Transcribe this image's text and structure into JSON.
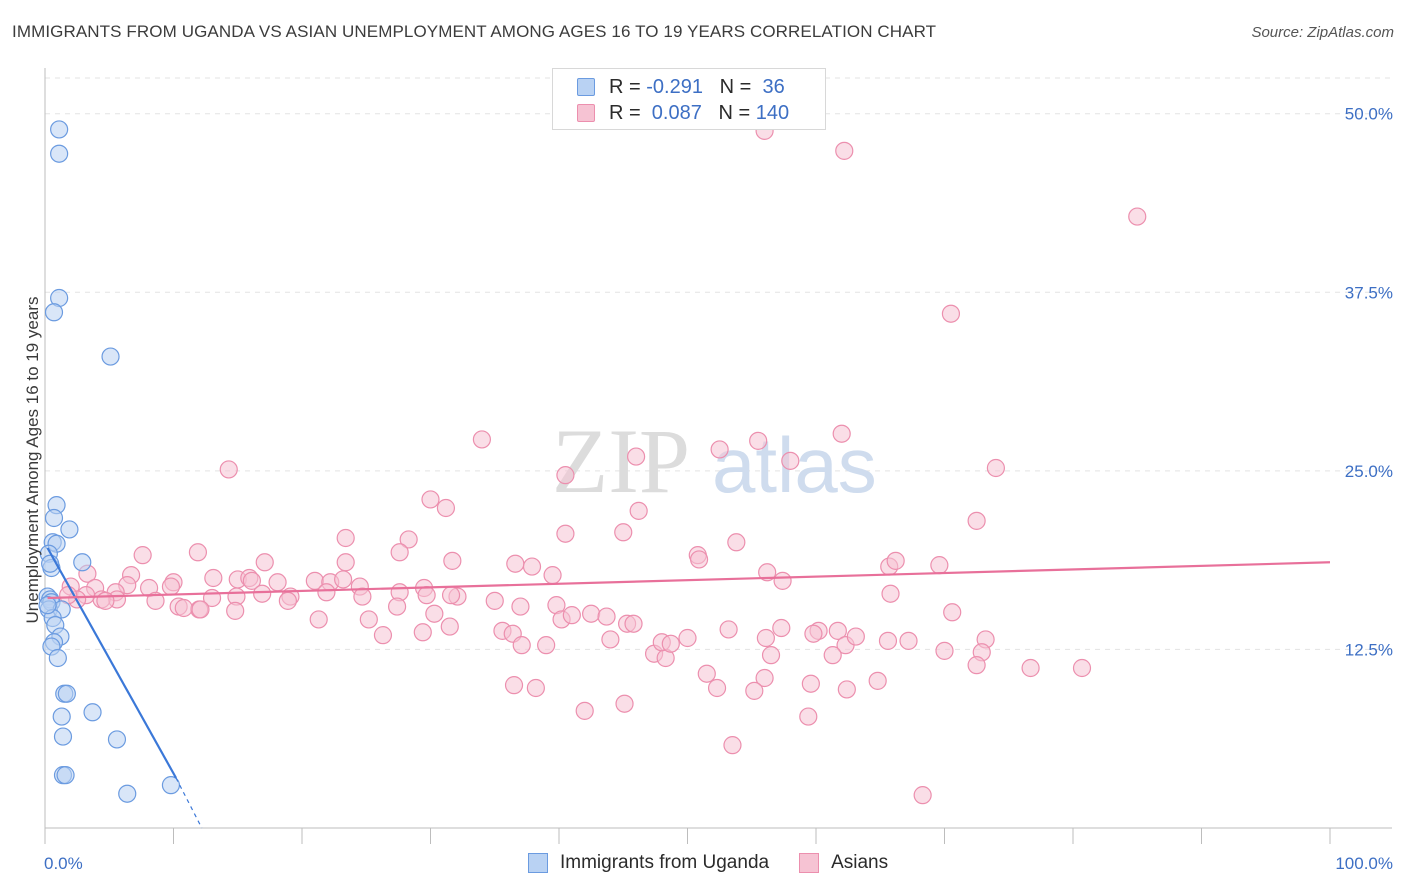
{
  "title": "IMMIGRANTS FROM UGANDA VS ASIAN UNEMPLOYMENT AMONG AGES 16 TO 19 YEARS CORRELATION CHART",
  "source": "Source: ZipAtlas.com",
  "watermark": {
    "zip": "ZIP",
    "atlas": "atlas"
  },
  "colors": {
    "uganda_fill": "#b9d2f3",
    "uganda_stroke": "#6b9be0",
    "uganda_line": "#3b78d8",
    "asian_fill": "#f6c3d3",
    "asian_stroke": "#ec8fae",
    "asian_line": "#e8709a",
    "tick_text": "#3d6fc4",
    "grid": "#e3e3e3"
  },
  "legend": {
    "rows": [
      {
        "r_label": "R =",
        "r_value": "-0.291",
        "n_label": "N =",
        "n_value": " 36",
        "series": "uganda"
      },
      {
        "r_label": "R =",
        "r_value": " 0.087",
        "n_label": "N =",
        "n_value": "140",
        "series": "asian"
      }
    ]
  },
  "bottom_legend": [
    {
      "label": "Immigrants from Uganda",
      "series": "uganda"
    },
    {
      "label": "Asians",
      "series": "asian"
    }
  ],
  "chart_data": {
    "type": "scatter",
    "ylabel": "Unemployment Among Ages 16 to 19 years",
    "xlabel": "",
    "xlim": [
      0,
      100
    ],
    "ylim": [
      0,
      52.5
    ],
    "x_tick_labels": [
      {
        "x": 0,
        "label": "0.0%"
      },
      {
        "x": 100,
        "label": "100.0%"
      }
    ],
    "y_ticks": [
      {
        "y": 12.5,
        "label": "12.5%"
      },
      {
        "y": 25,
        "label": "25.0%"
      },
      {
        "y": 37.5,
        "label": "37.5%"
      },
      {
        "y": 50,
        "label": "50.0%"
      }
    ],
    "grid": true,
    "series": [
      {
        "name": "Immigrants from Uganda",
        "key": "uganda",
        "points": [
          [
            1.1,
            48.9
          ],
          [
            1.1,
            47.2
          ],
          [
            1.1,
            37.1
          ],
          [
            0.7,
            36.1
          ],
          [
            5.1,
            33.0
          ],
          [
            0.9,
            22.6
          ],
          [
            0.7,
            21.7
          ],
          [
            1.9,
            20.9
          ],
          [
            0.6,
            20.0
          ],
          [
            0.9,
            19.9
          ],
          [
            0.3,
            19.2
          ],
          [
            2.9,
            18.6
          ],
          [
            0.5,
            18.2
          ],
          [
            0.2,
            16.2
          ],
          [
            0.4,
            16.0
          ],
          [
            0.5,
            15.8
          ],
          [
            0.3,
            15.3
          ],
          [
            1.3,
            15.3
          ],
          [
            0.6,
            14.7
          ],
          [
            0.8,
            14.2
          ],
          [
            1.2,
            13.4
          ],
          [
            0.7,
            13.0
          ],
          [
            0.5,
            12.7
          ],
          [
            1.0,
            11.9
          ],
          [
            1.5,
            9.4
          ],
          [
            1.7,
            9.4
          ],
          [
            3.7,
            8.1
          ],
          [
            1.3,
            7.8
          ],
          [
            1.4,
            6.4
          ],
          [
            5.6,
            6.2
          ],
          [
            1.4,
            3.7
          ],
          [
            1.6,
            3.7
          ],
          [
            6.4,
            2.4
          ],
          [
            9.8,
            3.0
          ],
          [
            0.4,
            18.5
          ],
          [
            0.2,
            15.6
          ]
        ],
        "trend": {
          "x1": 0.2,
          "y1": 19.6,
          "x2": 10.2,
          "y2": 3.5,
          "dash_x2": 12.2,
          "dash_y2": 0
        }
      },
      {
        "name": "Asians",
        "key": "asian",
        "points": [
          [
            56.0,
            48.8
          ],
          [
            62.2,
            47.4
          ],
          [
            85.0,
            42.8
          ],
          [
            70.5,
            36.0
          ],
          [
            62.0,
            27.6
          ],
          [
            34.0,
            27.2
          ],
          [
            55.5,
            27.1
          ],
          [
            46.0,
            26.0
          ],
          [
            52.5,
            26.5
          ],
          [
            58.0,
            25.7
          ],
          [
            14.3,
            25.1
          ],
          [
            40.5,
            24.7
          ],
          [
            74.0,
            25.2
          ],
          [
            30.0,
            23.0
          ],
          [
            31.2,
            22.4
          ],
          [
            46.2,
            22.2
          ],
          [
            72.5,
            21.5
          ],
          [
            23.4,
            20.3
          ],
          [
            28.3,
            20.2
          ],
          [
            40.5,
            20.6
          ],
          [
            45.0,
            20.7
          ],
          [
            53.8,
            20.0
          ],
          [
            27.6,
            19.3
          ],
          [
            11.9,
            19.3
          ],
          [
            7.6,
            19.1
          ],
          [
            50.8,
            19.1
          ],
          [
            50.9,
            18.8
          ],
          [
            3.3,
            17.8
          ],
          [
            23.4,
            18.6
          ],
          [
            17.1,
            18.6
          ],
          [
            31.7,
            18.7
          ],
          [
            36.6,
            18.5
          ],
          [
            37.9,
            18.3
          ],
          [
            56.2,
            17.9
          ],
          [
            65.7,
            18.3
          ],
          [
            66.2,
            18.7
          ],
          [
            69.6,
            18.4
          ],
          [
            57.4,
            17.3
          ],
          [
            10.0,
            17.2
          ],
          [
            39.5,
            17.7
          ],
          [
            29.5,
            16.8
          ],
          [
            6.7,
            17.7
          ],
          [
            15.0,
            17.4
          ],
          [
            15.9,
            17.5
          ],
          [
            16.1,
            17.3
          ],
          [
            13.1,
            17.5
          ],
          [
            18.1,
            17.2
          ],
          [
            21.0,
            17.3
          ],
          [
            8.1,
            16.8
          ],
          [
            9.8,
            16.9
          ],
          [
            22.2,
            17.2
          ],
          [
            23.2,
            17.4
          ],
          [
            24.5,
            16.9
          ],
          [
            6.4,
            17.0
          ],
          [
            5.5,
            16.5
          ],
          [
            2.0,
            16.9
          ],
          [
            3.9,
            16.8
          ],
          [
            13.0,
            16.1
          ],
          [
            14.9,
            16.2
          ],
          [
            16.9,
            16.4
          ],
          [
            21.9,
            16.5
          ],
          [
            19.1,
            16.2
          ],
          [
            24.7,
            16.2
          ],
          [
            18.9,
            15.9
          ],
          [
            27.6,
            16.5
          ],
          [
            29.7,
            16.3
          ],
          [
            32.1,
            16.2
          ],
          [
            31.6,
            16.3
          ],
          [
            35.0,
            15.9
          ],
          [
            27.4,
            15.5
          ],
          [
            37.0,
            15.5
          ],
          [
            39.8,
            15.6
          ],
          [
            5.6,
            16.0
          ],
          [
            4.4,
            16.0
          ],
          [
            4.7,
            15.9
          ],
          [
            3.2,
            16.3
          ],
          [
            2.5,
            16.0
          ],
          [
            1.8,
            16.3
          ],
          [
            8.6,
            15.9
          ],
          [
            12.0,
            15.3
          ],
          [
            10.4,
            15.5
          ],
          [
            10.8,
            15.4
          ],
          [
            12.1,
            15.3
          ],
          [
            14.8,
            15.2
          ],
          [
            30.3,
            15.0
          ],
          [
            42.5,
            15.0
          ],
          [
            43.7,
            14.8
          ],
          [
            40.2,
            14.6
          ],
          [
            41.0,
            14.9
          ],
          [
            65.8,
            16.4
          ],
          [
            70.6,
            15.1
          ],
          [
            21.3,
            14.6
          ],
          [
            25.2,
            14.6
          ],
          [
            26.3,
            13.5
          ],
          [
            35.6,
            13.8
          ],
          [
            31.5,
            14.1
          ],
          [
            29.4,
            13.7
          ],
          [
            36.4,
            13.6
          ],
          [
            45.3,
            14.3
          ],
          [
            50.0,
            13.3
          ],
          [
            45.8,
            14.3
          ],
          [
            53.2,
            13.9
          ],
          [
            56.1,
            13.3
          ],
          [
            57.3,
            14.0
          ],
          [
            60.2,
            13.8
          ],
          [
            59.8,
            13.6
          ],
          [
            61.7,
            13.8
          ],
          [
            65.6,
            13.1
          ],
          [
            62.3,
            12.8
          ],
          [
            61.3,
            12.1
          ],
          [
            63.1,
            13.4
          ],
          [
            47.4,
            12.2
          ],
          [
            48.3,
            11.9
          ],
          [
            37.1,
            12.8
          ],
          [
            39.0,
            12.8
          ],
          [
            44.0,
            13.2
          ],
          [
            48.0,
            13.0
          ],
          [
            48.7,
            12.9
          ],
          [
            56.5,
            12.1
          ],
          [
            67.2,
            13.1
          ],
          [
            73.2,
            13.2
          ],
          [
            70.0,
            12.4
          ],
          [
            72.9,
            12.3
          ],
          [
            72.5,
            11.4
          ],
          [
            76.7,
            11.2
          ],
          [
            56.0,
            10.5
          ],
          [
            51.5,
            10.8
          ],
          [
            64.8,
            10.3
          ],
          [
            59.6,
            10.1
          ],
          [
            62.4,
            9.7
          ],
          [
            36.5,
            10.0
          ],
          [
            38.2,
            9.8
          ],
          [
            52.3,
            9.8
          ],
          [
            55.2,
            9.6
          ],
          [
            45.1,
            8.7
          ],
          [
            42.0,
            8.2
          ],
          [
            59.4,
            7.8
          ],
          [
            53.5,
            5.8
          ],
          [
            68.3,
            2.3
          ],
          [
            80.7,
            11.2
          ]
        ],
        "trend": {
          "x1": 0.2,
          "y1": 16.1,
          "x2": 100,
          "y2": 18.6
        }
      }
    ]
  }
}
